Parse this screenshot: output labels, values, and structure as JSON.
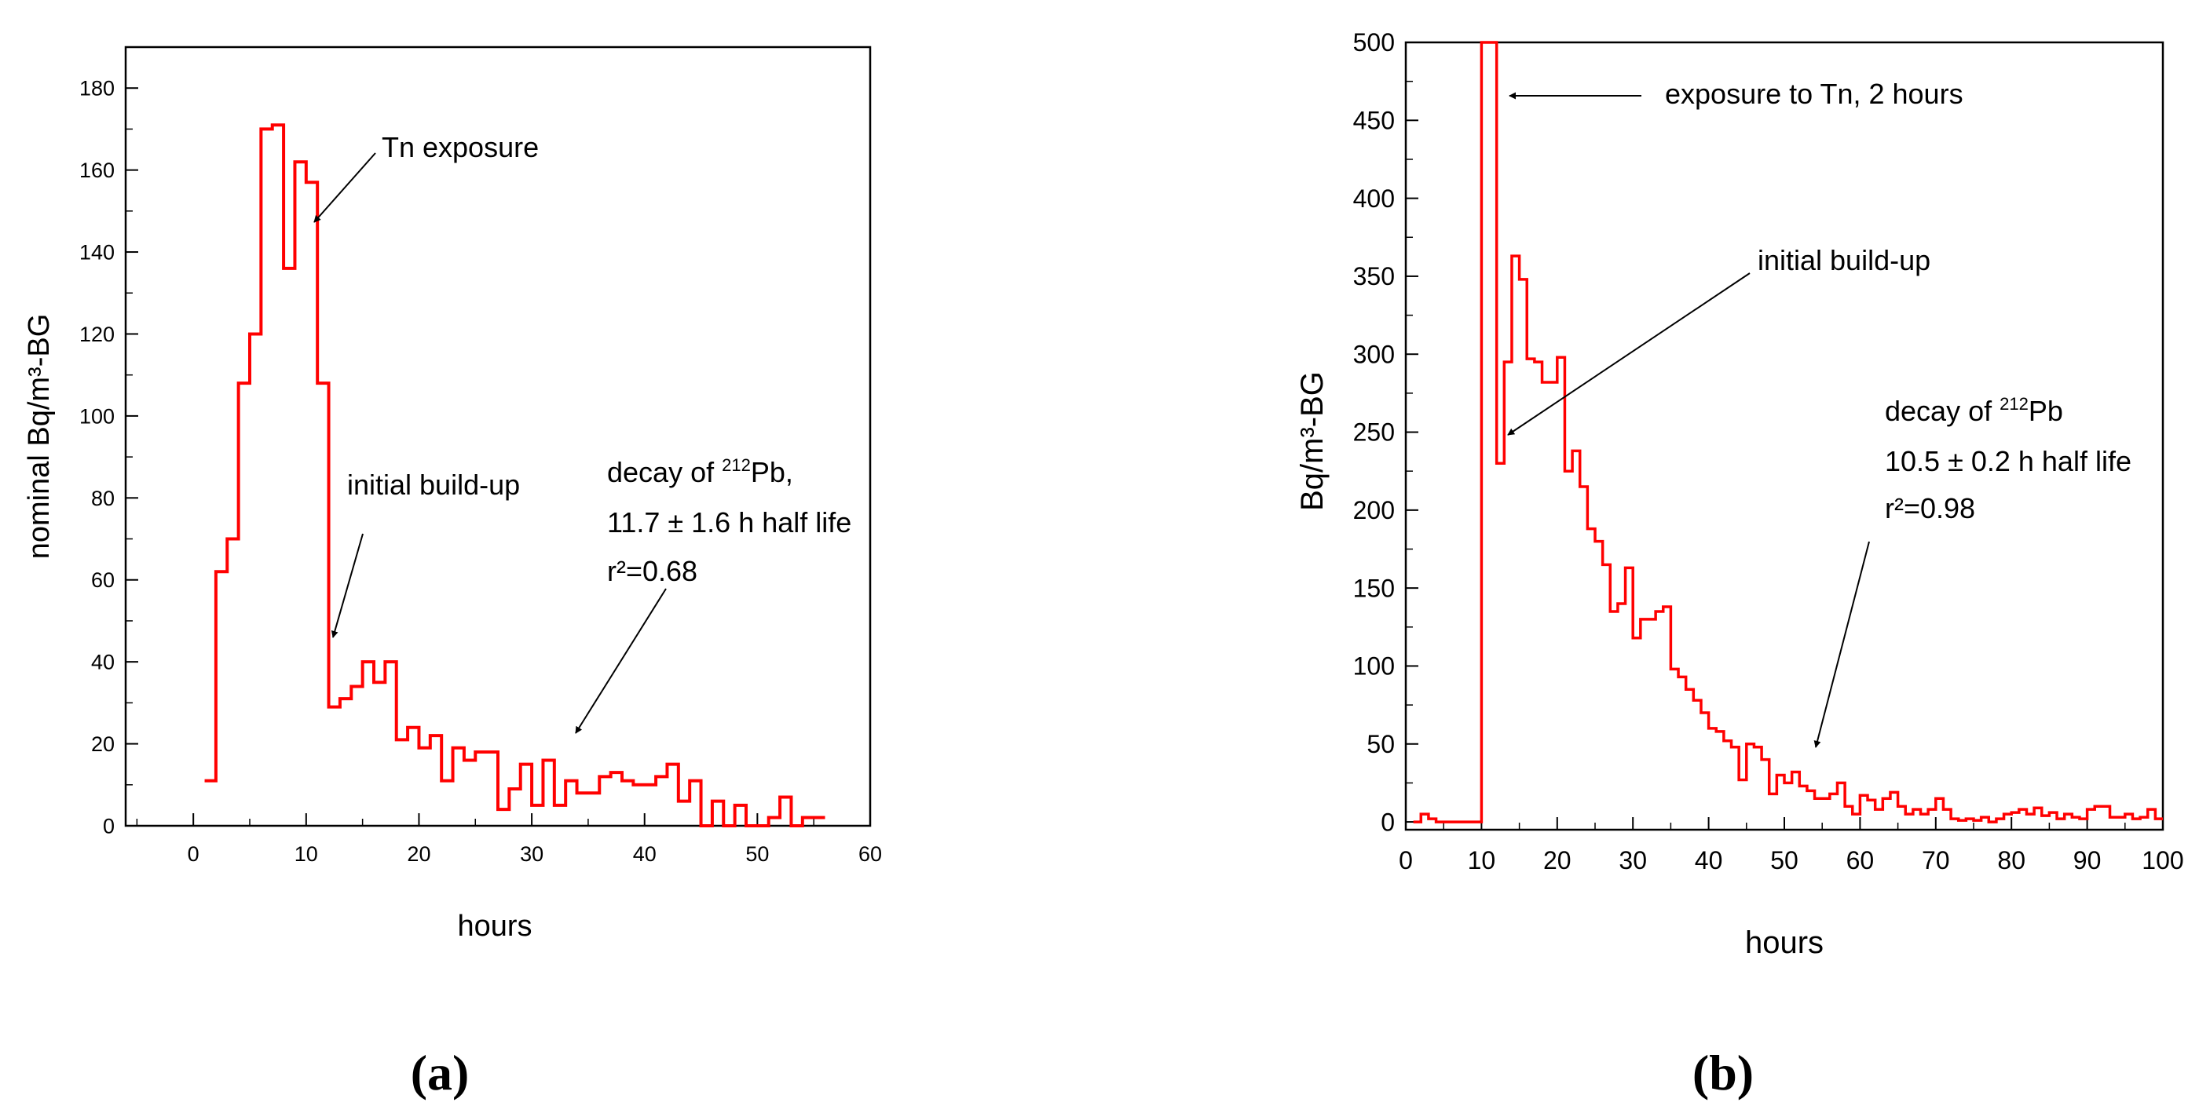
{
  "chart_data": [
    {
      "panel_label": "(a)",
      "type": "line",
      "style": "step",
      "xlabel": "hours",
      "ylabel": "nominal Bq/m³-BG",
      "xlim": [
        -6,
        60
      ],
      "ylim": [
        0,
        190
      ],
      "xticks": [
        0,
        10,
        20,
        30,
        40,
        50,
        60
      ],
      "yticks": [
        0,
        20,
        40,
        60,
        80,
        100,
        120,
        140,
        160,
        180
      ],
      "grid": false,
      "legend": "none",
      "line_color": "#ff0000",
      "series": [
        {
          "x": [
            1,
            2,
            3,
            4,
            5,
            6,
            7,
            8,
            9,
            10,
            11,
            12,
            13,
            14,
            15,
            16,
            17,
            18,
            19,
            20,
            21,
            22,
            23,
            24,
            25,
            26,
            27,
            28,
            29,
            30,
            31,
            32,
            33,
            34,
            35,
            36,
            37,
            38,
            39,
            40,
            41,
            42,
            43,
            44,
            45,
            46,
            47,
            48,
            49,
            50,
            51,
            52,
            53,
            54,
            55
          ],
          "values": [
            11,
            62,
            70,
            108,
            120,
            170,
            171,
            136,
            162,
            157,
            108,
            29,
            31,
            34,
            40,
            35,
            40,
            21,
            24,
            19,
            22,
            11,
            19,
            16,
            18,
            18,
            4,
            9,
            15,
            5,
            16,
            5,
            11,
            8,
            8,
            12,
            13,
            11,
            10,
            10,
            12,
            15,
            6,
            11,
            0,
            6,
            0,
            5,
            0,
            0,
            2,
            7,
            0,
            2,
            2
          ]
        }
      ],
      "annotations": [
        {
          "text": "Tn exposure"
        },
        {
          "text": "initial build-up"
        },
        {
          "line1_prefix": "decay of ",
          "line1_sup": "212",
          "line1_suffix": "Pb,",
          "line2": "11.7 ± 1.6 h half life",
          "line3": "r²=0.68"
        }
      ]
    },
    {
      "panel_label": "(b)",
      "type": "line",
      "style": "step",
      "xlabel": "hours",
      "ylabel": "Bq/m³-BG",
      "xlim": [
        0,
        100
      ],
      "ylim": [
        -5,
        500
      ],
      "xticks": [
        0,
        10,
        20,
        30,
        40,
        50,
        60,
        70,
        80,
        90,
        100
      ],
      "yticks": [
        0,
        50,
        100,
        150,
        200,
        250,
        300,
        350,
        400,
        450,
        500
      ],
      "grid": false,
      "legend": "none",
      "line_color": "#ff0000",
      "series": [
        {
          "x": [
            1,
            2,
            3,
            4,
            5,
            6,
            7,
            8,
            9,
            10,
            11,
            12,
            13,
            14,
            15,
            16,
            17,
            18,
            19,
            20,
            21,
            22,
            23,
            24,
            25,
            26,
            27,
            28,
            29,
            30,
            31,
            32,
            33,
            34,
            35,
            36,
            37,
            38,
            39,
            40,
            41,
            42,
            43,
            44,
            45,
            46,
            47,
            48,
            49,
            50,
            51,
            52,
            53,
            54,
            55,
            56,
            57,
            58,
            59,
            60,
            61,
            62,
            63,
            64,
            65,
            66,
            67,
            68,
            69,
            70,
            71,
            72,
            73,
            74,
            75,
            76,
            77,
            78,
            79,
            80,
            81,
            82,
            83,
            84,
            85,
            86,
            87,
            88,
            89,
            90,
            91,
            92,
            93,
            94,
            95,
            96,
            97,
            98,
            99
          ],
          "values": [
            0,
            5,
            2,
            0,
            0,
            0,
            0,
            0,
            0,
            500,
            500,
            230,
            295,
            363,
            348,
            297,
            295,
            282,
            282,
            298,
            225,
            238,
            215,
            188,
            180,
            165,
            135,
            140,
            163,
            118,
            130,
            130,
            135,
            138,
            98,
            93,
            85,
            78,
            70,
            60,
            58,
            52,
            48,
            27,
            50,
            48,
            40,
            18,
            30,
            25,
            32,
            23,
            20,
            15,
            15,
            18,
            25,
            10,
            5,
            17,
            14,
            8,
            15,
            19,
            10,
            5,
            8,
            5,
            8,
            15,
            8,
            2,
            1,
            2,
            1,
            3,
            0,
            2,
            5,
            6,
            8,
            5,
            9,
            4,
            6,
            2,
            5,
            3,
            2,
            8,
            10,
            10,
            3,
            3,
            5,
            2,
            3,
            8,
            2
          ]
        }
      ],
      "annotations": [
        {
          "text": "exposure to Tn, 2 hours"
        },
        {
          "text": "initial build-up"
        },
        {
          "line1_prefix": "decay of ",
          "line1_sup": "212",
          "line1_suffix": "Pb",
          "line2": "10.5 ± 0.2 h half life",
          "line3": "r²=0.98"
        }
      ]
    }
  ]
}
